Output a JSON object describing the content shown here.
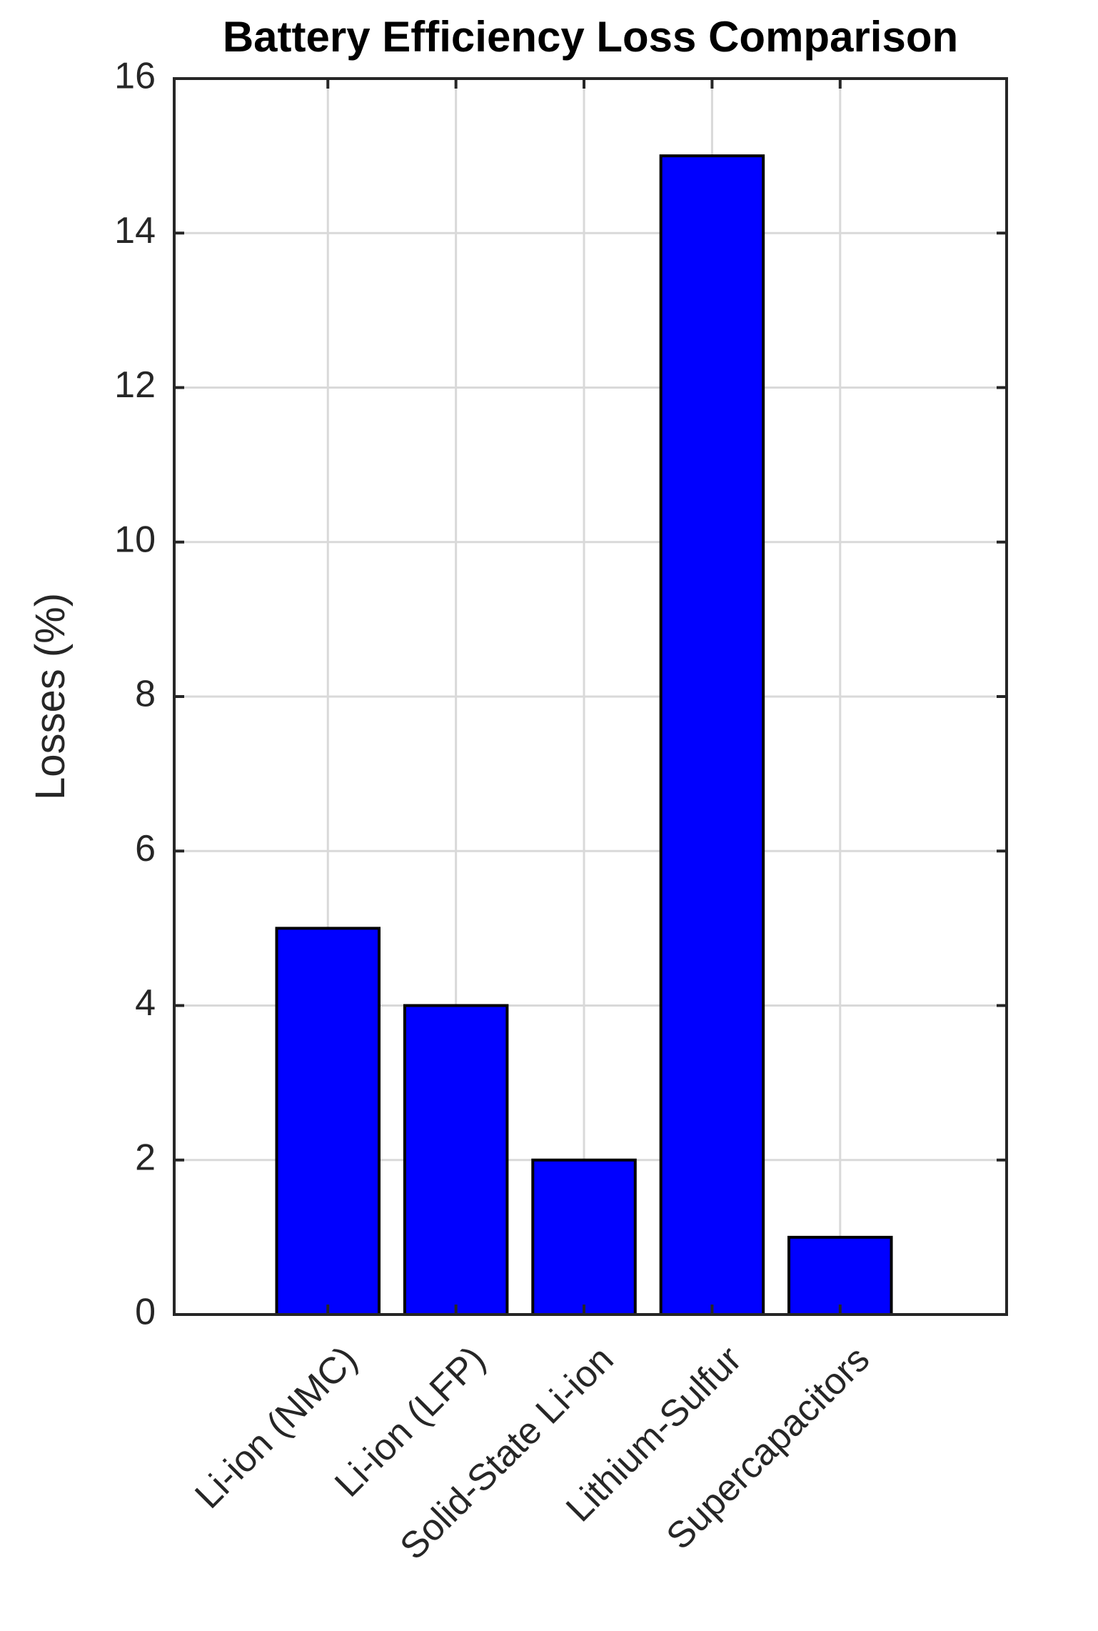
{
  "chart_data": {
    "type": "bar",
    "title": "Battery Efficiency Loss Comparison",
    "xlabel": "",
    "ylabel": "Losses (%)",
    "categories": [
      "Li-ion (NMC)",
      "Li-ion (LFP)",
      "Solid-State Li-ion",
      "Lithium-Sulfur",
      "Supercapacitors"
    ],
    "values": [
      5,
      4,
      2,
      15,
      1
    ],
    "ylim": [
      0,
      16
    ],
    "yticks": [
      0,
      2,
      4,
      6,
      8,
      10,
      12,
      14,
      16
    ],
    "ytick_labels": [
      "0",
      "2",
      "4",
      "6",
      "8",
      "10",
      "12",
      "14",
      "16"
    ],
    "grid": true,
    "legend": "none",
    "colors": {
      "bar_fill": "#0000ff",
      "bar_edge": "#000000",
      "grid": "#d9d9d9",
      "axes": "#262626",
      "text": "#262626",
      "title": "#000000"
    }
  }
}
